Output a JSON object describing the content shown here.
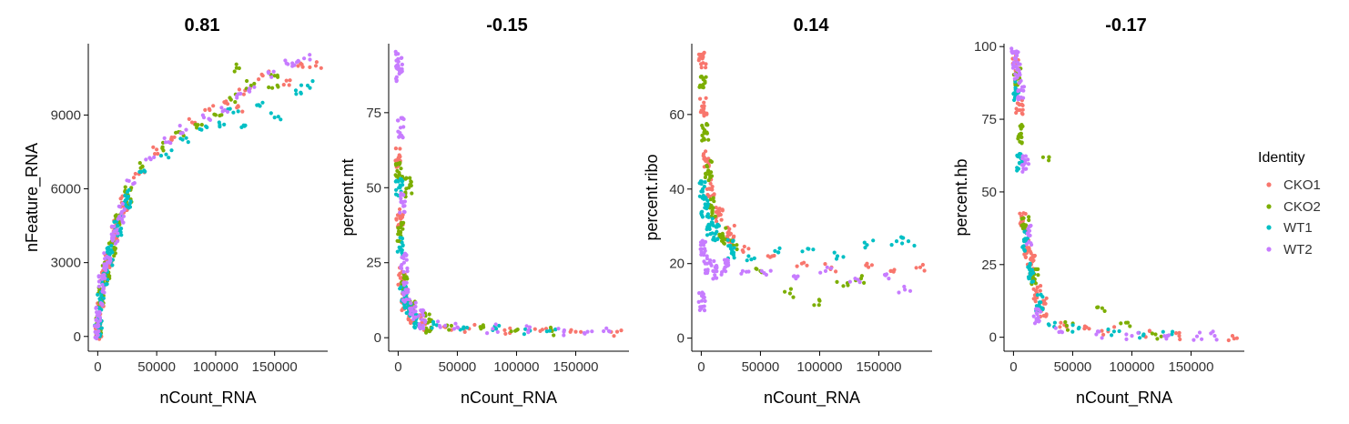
{
  "chart_data": [
    {
      "type": "scatter",
      "title": "0.81",
      "xlabel": "nCount_RNA",
      "ylabel": "nFeature_RNA",
      "xlim": [
        -8000,
        195000
      ],
      "ylim": [
        -600,
        11900
      ],
      "xticks": [
        0,
        50000,
        100000,
        150000
      ],
      "xtick_labels": [
        "0",
        "50000",
        "100000",
        "150000"
      ],
      "yticks": [
        0,
        3000,
        6000,
        9000
      ],
      "ytick_labels": [
        "0",
        "3000",
        "6000",
        "9000"
      ],
      "series": [
        {
          "name": "CKO1",
          "points": [
            [
              500,
              300
            ],
            [
              2000,
              1200
            ],
            [
              5000,
              2300
            ],
            [
              9000,
              3100
            ],
            [
              15000,
              4300
            ],
            [
              22000,
              5300
            ],
            [
              35000,
              6600
            ],
            [
              50000,
              7600
            ],
            [
              65000,
              8100
            ],
            [
              80000,
              8700
            ],
            [
              95000,
              9200
            ],
            [
              108000,
              9500
            ],
            [
              118000,
              9300
            ],
            [
              125000,
              10000
            ],
            [
              140000,
              10600
            ],
            [
              160000,
              10400
            ],
            [
              172000,
              11100
            ],
            [
              185000,
              11000
            ]
          ]
        },
        {
          "name": "CKO2",
          "points": [
            [
              800,
              400
            ],
            [
              3000,
              1600
            ],
            [
              7000,
              2600
            ],
            [
              12000,
              3500
            ],
            [
              18000,
              4600
            ],
            [
              26000,
              5700
            ],
            [
              38000,
              6900
            ],
            [
              55000,
              7700
            ],
            [
              70000,
              8300
            ],
            [
              85000,
              8600
            ],
            [
              100000,
              9000
            ],
            [
              112000,
              9700
            ],
            [
              120000,
              10900
            ],
            [
              130000,
              10200
            ],
            [
              148000,
              10100
            ],
            [
              150000,
              10600
            ]
          ]
        },
        {
          "name": "WT1",
          "points": [
            [
              600,
              350
            ],
            [
              2500,
              1400
            ],
            [
              6000,
              2400
            ],
            [
              10000,
              3300
            ],
            [
              17000,
              4500
            ],
            [
              25000,
              5600
            ],
            [
              40000,
              6700
            ],
            [
              58000,
              7400
            ],
            [
              72000,
              8000
            ],
            [
              88000,
              8400
            ],
            [
              103000,
              8700
            ],
            [
              115000,
              9100
            ],
            [
              122000,
              8500
            ],
            [
              135000,
              9400
            ],
            [
              150000,
              8900
            ],
            [
              168000,
              10000
            ],
            [
              178000,
              10200
            ]
          ]
        },
        {
          "name": "WT2",
          "points": [
            [
              300,
              200
            ],
            [
              1500,
              1000
            ],
            [
              4000,
              2100
            ],
            [
              8000,
              3000
            ],
            [
              14000,
              4100
            ],
            [
              20000,
              5000
            ],
            [
              30000,
              6200
            ],
            [
              45000,
              7200
            ],
            [
              60000,
              7900
            ],
            [
              75000,
              8400
            ],
            [
              90000,
              8900
            ],
            [
              105000,
              9300
            ],
            [
              118000,
              9700
            ],
            [
              128000,
              10000
            ],
            [
              145000,
              10700
            ],
            [
              160000,
              11100
            ],
            [
              170000,
              11200
            ],
            [
              175000,
              11300
            ]
          ]
        }
      ]
    },
    {
      "type": "scatter",
      "title": "-0.15",
      "xlabel": "nCount_RNA",
      "ylabel": "percent.mt",
      "xlim": [
        -8000,
        195000
      ],
      "ylim": [
        -4.5,
        98
      ],
      "xticks": [
        0,
        50000,
        100000,
        150000
      ],
      "xtick_labels": [
        "0",
        "50000",
        "100000",
        "150000"
      ],
      "yticks": [
        0,
        25,
        50,
        75
      ],
      "ytick_labels": [
        "0",
        "25",
        "50",
        "75"
      ],
      "series": [
        {
          "name": "CKO1",
          "points": [
            [
              500,
              60
            ],
            [
              1500,
              40
            ],
            [
              3000,
              20
            ],
            [
              6000,
              12
            ],
            [
              10000,
              8
            ],
            [
              20000,
              5
            ],
            [
              40000,
              3.5
            ],
            [
              60000,
              3
            ],
            [
              90000,
              2.5
            ],
            [
              120000,
              2.2
            ],
            [
              150000,
              2
            ],
            [
              185000,
              2
            ]
          ]
        },
        {
          "name": "CKO2",
          "points": [
            [
              800,
              55
            ],
            [
              2000,
              35
            ],
            [
              5000,
              18
            ],
            [
              9000,
              50
            ],
            [
              12000,
              9
            ],
            [
              25000,
              5
            ],
            [
              45000,
              4
            ],
            [
              70000,
              3
            ],
            [
              100000,
              2.5
            ],
            [
              130000,
              2.2
            ]
          ]
        },
        {
          "name": "WT1",
          "points": [
            [
              600,
              50
            ],
            [
              1800,
              30
            ],
            [
              4000,
              15
            ],
            [
              8000,
              10
            ],
            [
              15000,
              6
            ],
            [
              30000,
              4.5
            ],
            [
              55000,
              3
            ],
            [
              80000,
              2.5
            ],
            [
              110000,
              2
            ],
            [
              128000,
              2.3
            ]
          ]
        },
        {
          "name": "WT2",
          "points": [
            [
              300,
              92
            ],
            [
              1000,
              88
            ],
            [
              2000,
              70
            ],
            [
              3500,
              45
            ],
            [
              5000,
              25
            ],
            [
              7000,
              15
            ],
            [
              12000,
              9
            ],
            [
              20000,
              6
            ],
            [
              35000,
              4
            ],
            [
              50000,
              3.5
            ],
            [
              80000,
              3
            ],
            [
              110000,
              2.5
            ],
            [
              140000,
              2
            ],
            [
              160000,
              2
            ],
            [
              178000,
              2.2
            ]
          ]
        }
      ]
    },
    {
      "type": "scatter",
      "title": "0.14",
      "xlabel": "nCount_RNA",
      "ylabel": "percent.ribo",
      "xlim": [
        -8000,
        195000
      ],
      "ylim": [
        -3.5,
        79
      ],
      "xticks": [
        0,
        50000,
        100000,
        150000
      ],
      "xtick_labels": [
        "0",
        "50000",
        "100000",
        "150000"
      ],
      "yticks": [
        0,
        20,
        40,
        60
      ],
      "ytick_labels": [
        "0",
        "20",
        "40",
        "60"
      ],
      "series": [
        {
          "name": "CKO1",
          "points": [
            [
              1000,
              75
            ],
            [
              2000,
              62
            ],
            [
              4000,
              48
            ],
            [
              8000,
              40
            ],
            [
              15000,
              33
            ],
            [
              25000,
              28
            ],
            [
              40000,
              24
            ],
            [
              60000,
              22
            ],
            [
              85000,
              20
            ],
            [
              110000,
              19
            ],
            [
              140000,
              20
            ],
            [
              160000,
              18
            ],
            [
              185000,
              19
            ]
          ]
        },
        {
          "name": "CKO2",
          "points": [
            [
              1500,
              68
            ],
            [
              3000,
              55
            ],
            [
              6000,
              45
            ],
            [
              10000,
              35
            ],
            [
              18000,
              28
            ],
            [
              30000,
              25
            ],
            [
              50000,
              18
            ],
            [
              75000,
              12
            ],
            [
              100000,
              10
            ],
            [
              120000,
              14
            ],
            [
              135000,
              16
            ]
          ]
        },
        {
          "name": "WT1",
          "points": [
            [
              1200,
              40
            ],
            [
              3000,
              35
            ],
            [
              7000,
              30
            ],
            [
              12000,
              28
            ],
            [
              25000,
              24
            ],
            [
              40000,
              22
            ],
            [
              65000,
              23
            ],
            [
              90000,
              24
            ],
            [
              115000,
              22
            ],
            [
              140000,
              25
            ],
            [
              165000,
              26
            ],
            [
              175000,
              26
            ]
          ]
        },
        {
          "name": "WT2",
          "points": [
            [
              500,
              10
            ],
            [
              2000,
              25
            ],
            [
              5000,
              20
            ],
            [
              10000,
              18
            ],
            [
              20000,
              19
            ],
            [
              35000,
              18
            ],
            [
              55000,
              17
            ],
            [
              80000,
              16
            ],
            [
              105000,
              18
            ],
            [
              130000,
              16
            ],
            [
              155000,
              17
            ],
            [
              172000,
              13
            ]
          ]
        }
      ]
    },
    {
      "type": "scatter",
      "title": "-0.17",
      "xlabel": "nCount_RNA",
      "ylabel": "percent.hb",
      "xlim": [
        -8000,
        195000
      ],
      "ylim": [
        -4.8,
        101
      ],
      "xticks": [
        0,
        50000,
        100000,
        150000
      ],
      "xtick_labels": [
        "0",
        "50000",
        "100000",
        "150000"
      ],
      "yticks": [
        0,
        25,
        50,
        75,
        100
      ],
      "ytick_labels": [
        "0",
        "25",
        "50",
        "75",
        "100"
      ],
      "series": [
        {
          "name": "CKO1",
          "points": [
            [
              2000,
              95
            ],
            [
              5000,
              80
            ],
            [
              8000,
              40
            ],
            [
              12000,
              30
            ],
            [
              15000,
              25
            ],
            [
              20000,
              15
            ],
            [
              25000,
              10
            ],
            [
              40000,
              5
            ],
            [
              60000,
              3
            ],
            [
              80000,
              2
            ],
            [
              110000,
              1
            ],
            [
              140000,
              0.5
            ],
            [
              185000,
              0.5
            ]
          ]
        },
        {
          "name": "CKO2",
          "points": [
            [
              3000,
              90
            ],
            [
              6000,
              70
            ],
            [
              10000,
              38
            ],
            [
              18000,
              20
            ],
            [
              30000,
              62
            ],
            [
              45000,
              4
            ],
            [
              75000,
              10
            ],
            [
              95000,
              5
            ],
            [
              120000,
              1
            ]
          ]
        },
        {
          "name": "WT1",
          "points": [
            [
              2500,
              85
            ],
            [
              5000,
              60
            ],
            [
              9000,
              33
            ],
            [
              14000,
              22
            ],
            [
              22000,
              12
            ],
            [
              35000,
              5
            ],
            [
              55000,
              3
            ],
            [
              85000,
              2
            ],
            [
              110000,
              1
            ],
            [
              130000,
              0.5
            ]
          ]
        },
        {
          "name": "WT2",
          "points": [
            [
              1000,
              96
            ],
            [
              3000,
              92
            ],
            [
              6000,
              85
            ],
            [
              10000,
              60
            ],
            [
              14000,
              35
            ],
            [
              20000,
              8
            ],
            [
              40000,
              2
            ],
            [
              70000,
              1
            ],
            [
              100000,
              0.5
            ],
            [
              130000,
              0.5
            ],
            [
              155000,
              0.3
            ],
            [
              170000,
              0.5
            ]
          ]
        }
      ]
    }
  ],
  "legend": {
    "title": "Identity",
    "position": "right",
    "items": [
      {
        "label": "CKO1",
        "color": "#F8766D"
      },
      {
        "label": "CKO2",
        "color": "#7CAE00"
      },
      {
        "label": "WT1",
        "color": "#00BFC4"
      },
      {
        "label": "WT2",
        "color": "#C77CFF"
      }
    ]
  },
  "colors": {
    "CKO1": "#F8766D",
    "CKO2": "#7CAE00",
    "WT1": "#00BFC4",
    "WT2": "#C77CFF"
  }
}
